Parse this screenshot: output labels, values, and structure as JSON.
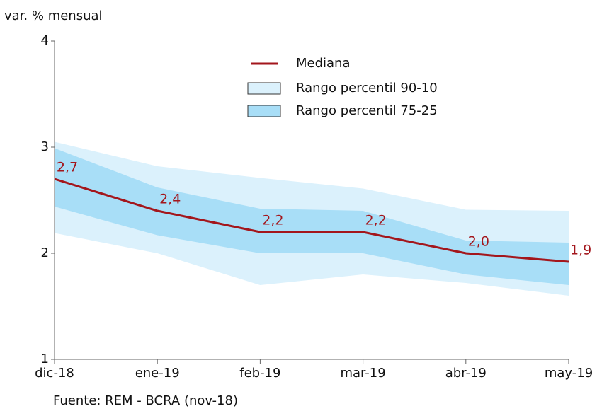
{
  "chart_data": {
    "type": "band-line",
    "y_label": "var. % mensual",
    "source": "Fuente: REM - BCRA (nov-18)",
    "categories": [
      "dic-18",
      "ene-19",
      "feb-19",
      "mar-19",
      "abr-19",
      "may-19"
    ],
    "ylim": [
      1,
      4
    ],
    "yticks": [
      1,
      2,
      3,
      4
    ],
    "bands": [
      {
        "name": "Rango percentil 90-10",
        "color": "#dbf1fc",
        "high": [
          3.05,
          2.82,
          2.71,
          2.61,
          2.41,
          2.4
        ],
        "low": [
          2.19,
          2.0,
          1.7,
          1.8,
          1.72,
          1.6
        ]
      },
      {
        "name": "Rango percentil 75-25",
        "color": "#a8def7",
        "high": [
          2.99,
          2.62,
          2.42,
          2.4,
          2.12,
          2.1
        ],
        "low": [
          2.44,
          2.17,
          2.0,
          2.0,
          1.8,
          1.7
        ]
      }
    ],
    "series": [
      {
        "name": "Mediana",
        "color": "#a3161c",
        "values": [
          2.7,
          2.4,
          2.2,
          2.2,
          2.0,
          1.92
        ],
        "value_labels": [
          "2,7",
          "2,4",
          "2,2",
          "2,2",
          "2,0",
          "1,9"
        ]
      }
    ]
  }
}
